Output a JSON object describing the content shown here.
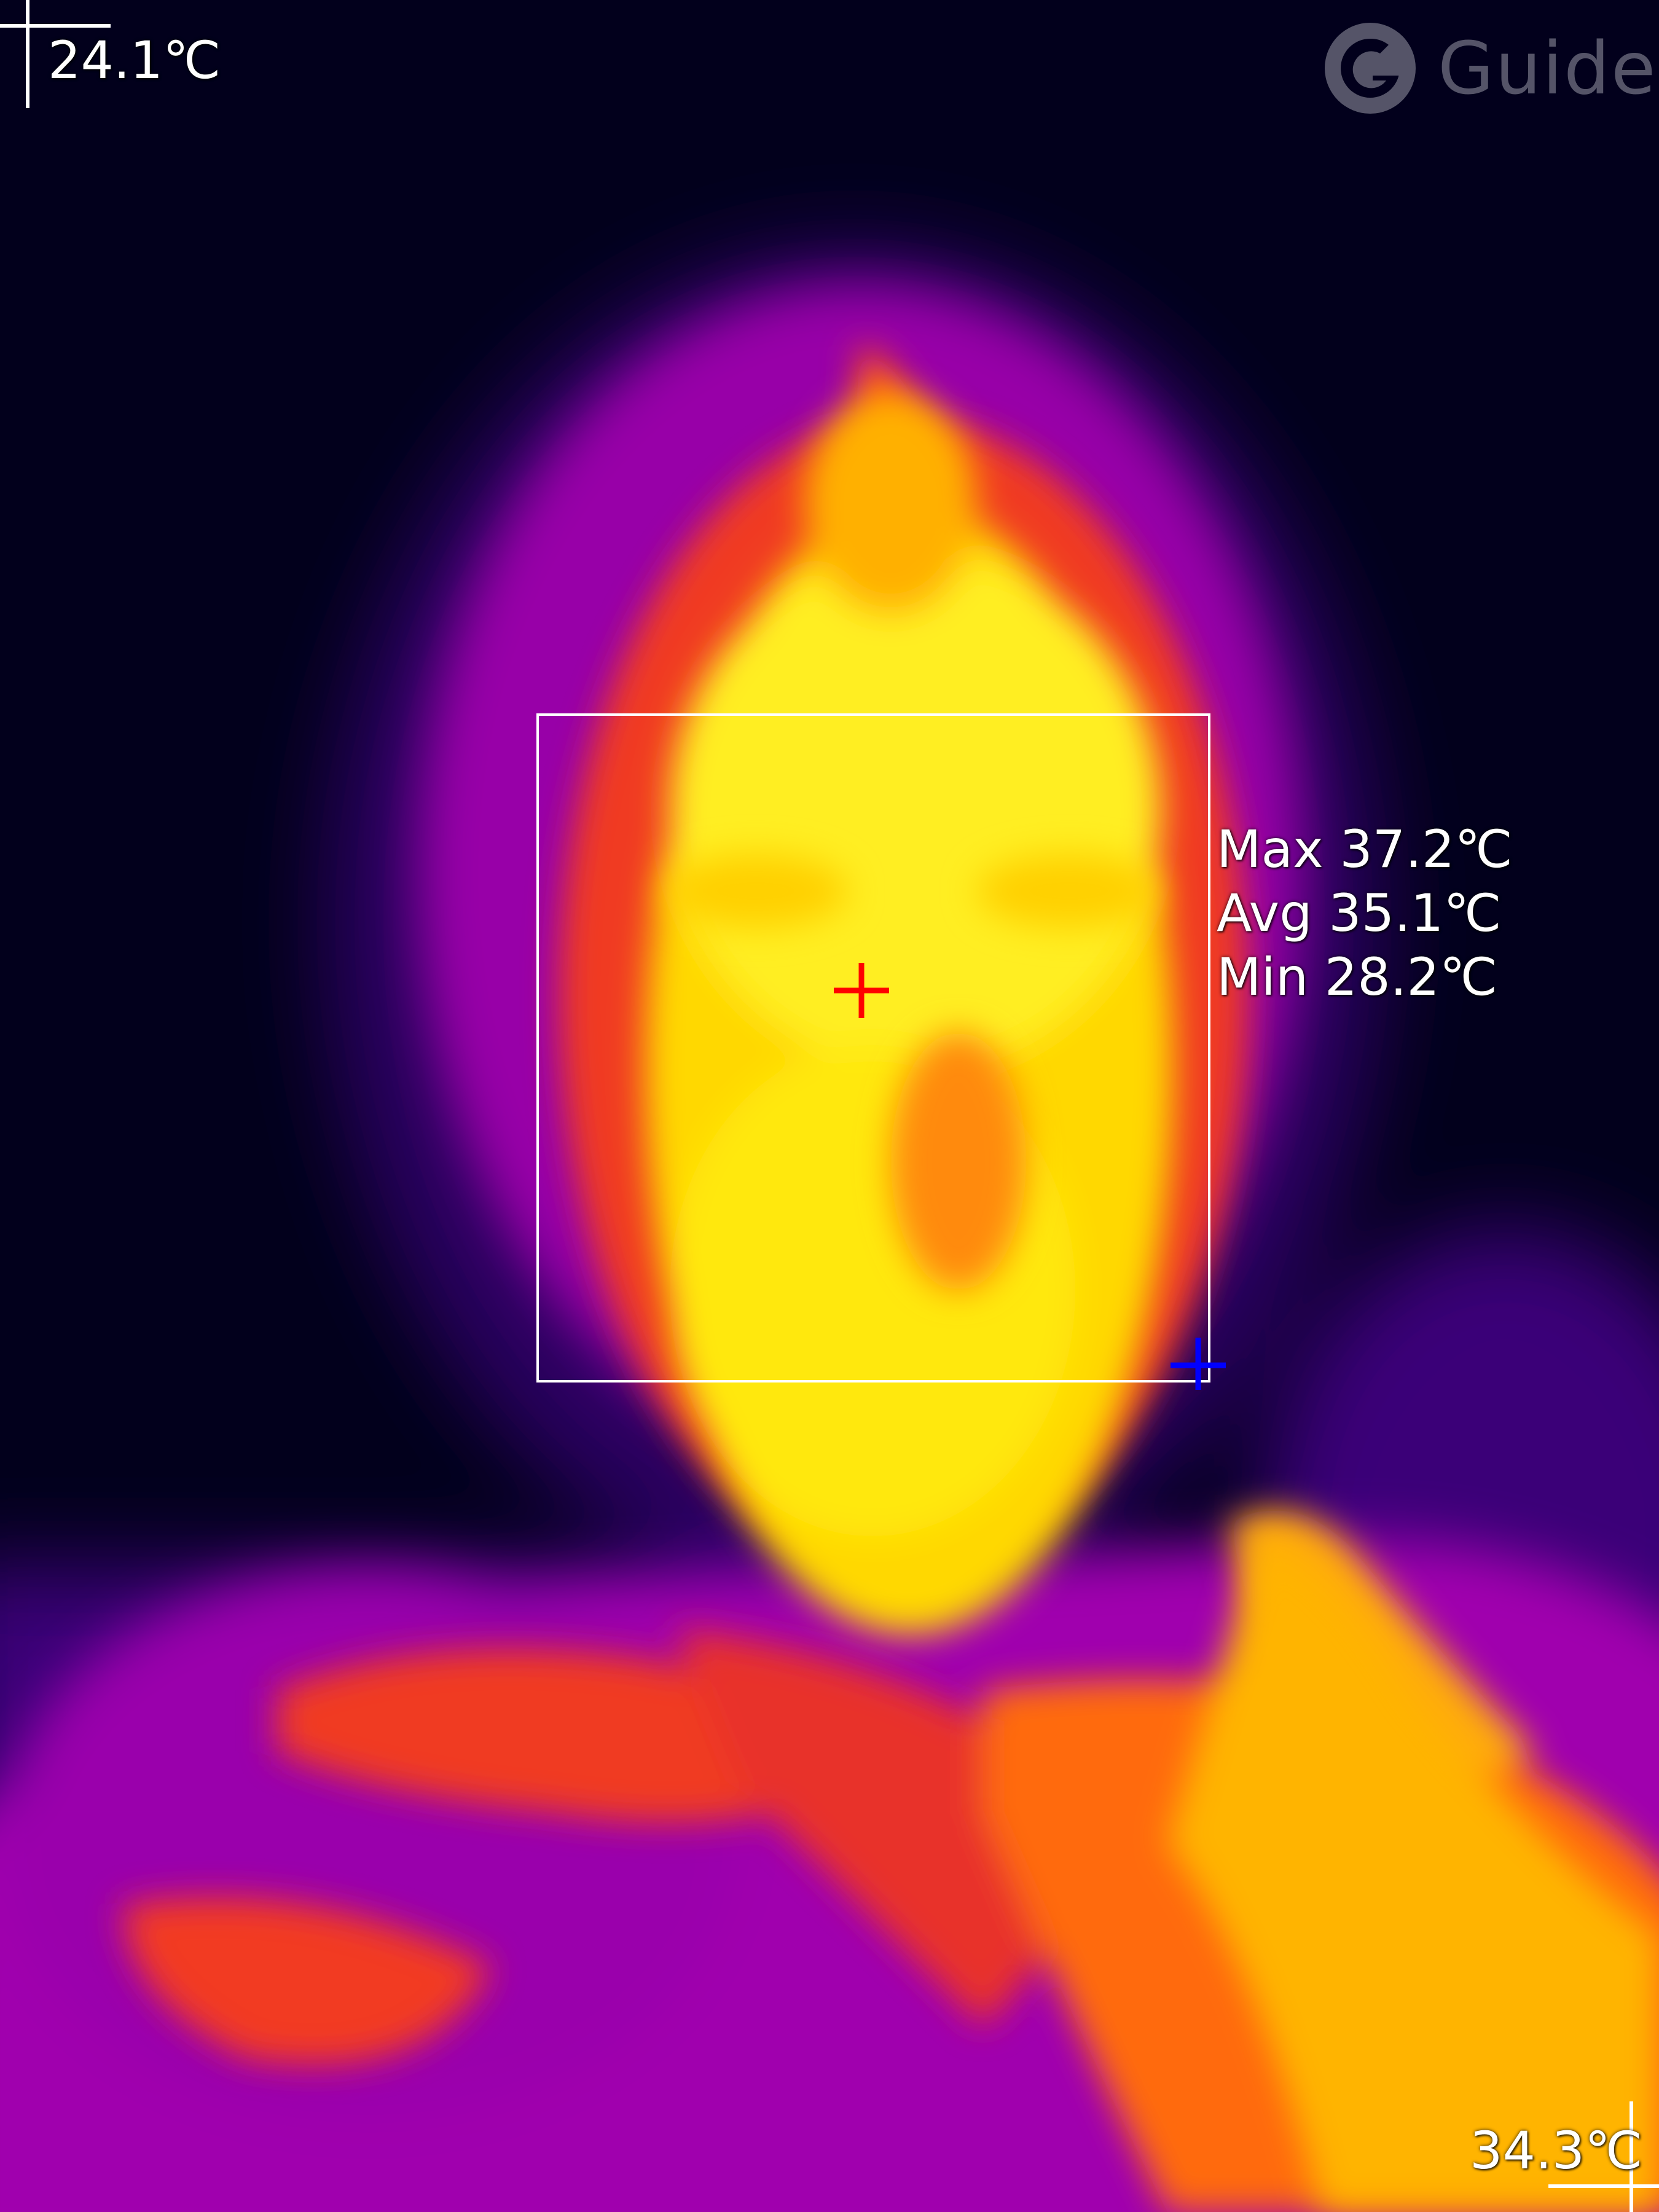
{
  "brand": {
    "logo_text": "Guide",
    "logo_icon": "guide-logo-icon"
  },
  "scene": {
    "palette": "iron-red",
    "colors": {
      "background": "#02001c",
      "cold": "#3a007a",
      "cool": "#a000b0",
      "warm": "#ff4a10",
      "hot": "#ffd400",
      "hottest": "#ffff40",
      "roi_box": "#ffffff",
      "max_marker": "#ff0000",
      "min_marker": "#0000ff"
    }
  },
  "scale": {
    "min_label": "24.1℃",
    "max_label": "34.3℃"
  },
  "roi": {
    "max_label": "Max 37.2℃",
    "avg_label": "Avg 35.1℃",
    "min_label": "Min 28.2℃"
  }
}
